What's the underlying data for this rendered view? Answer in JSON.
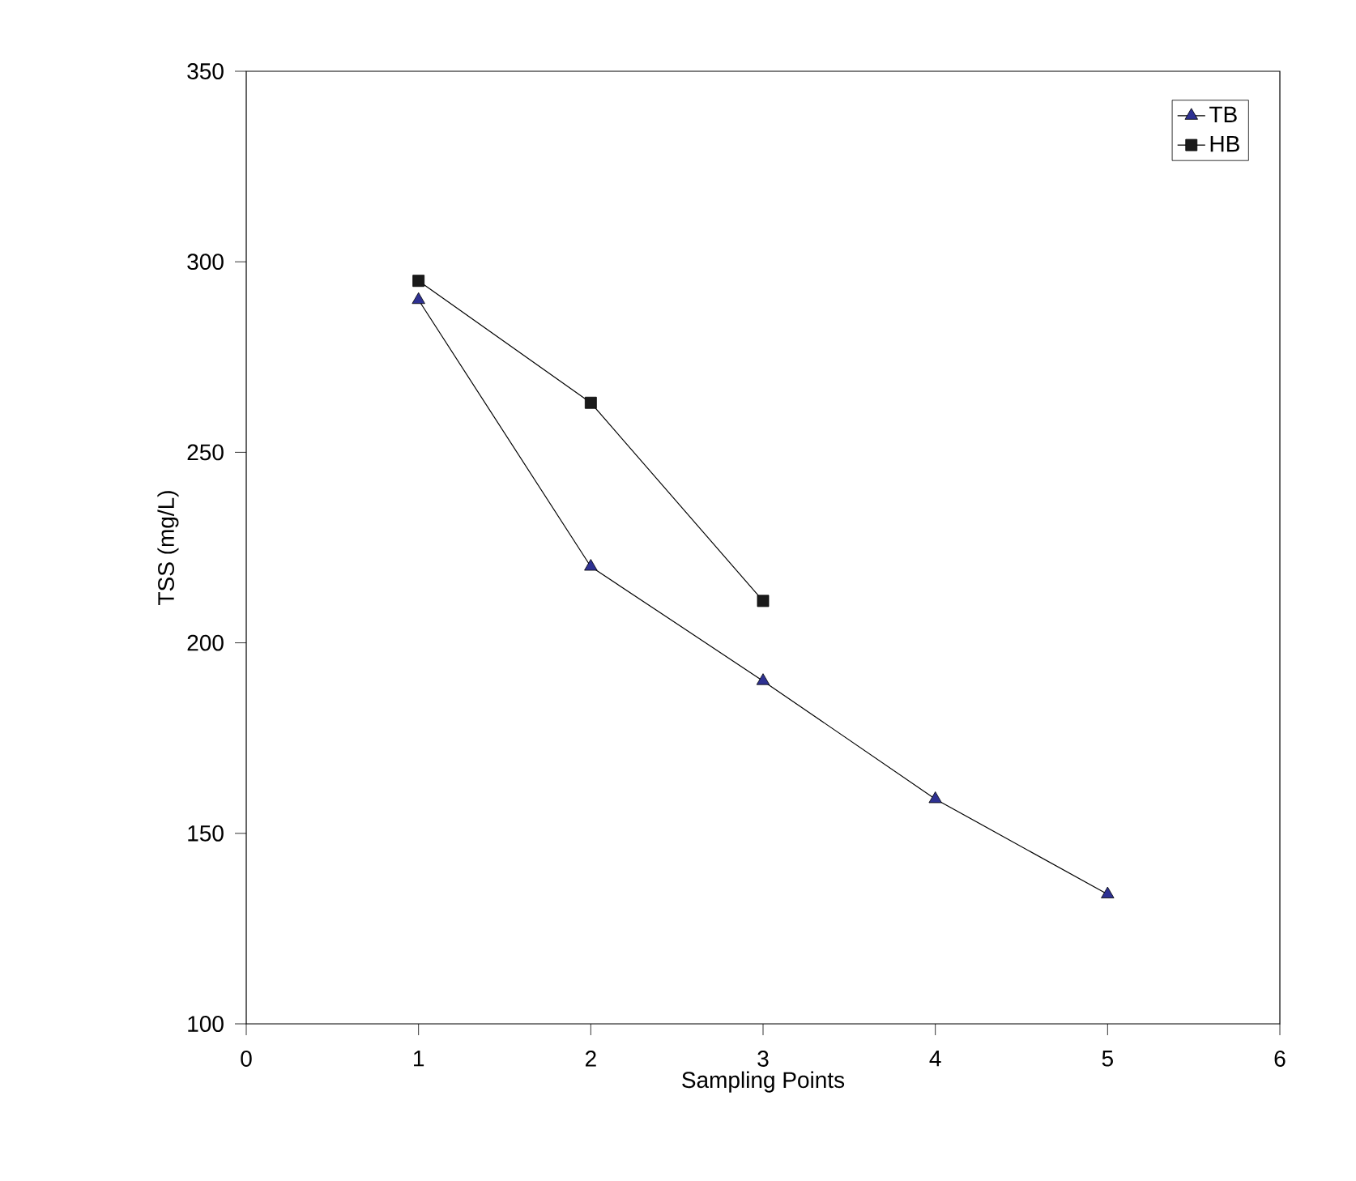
{
  "chart_data": {
    "type": "line",
    "xlabel": "Sampling Points",
    "ylabel": "TSS (mg/L)",
    "xlim": [
      0,
      6
    ],
    "xticks": [
      0,
      1,
      2,
      3,
      4,
      5,
      6
    ],
    "ylim": [
      100,
      350
    ],
    "yticks": [
      100,
      150,
      200,
      250,
      300,
      350
    ],
    "grid": false,
    "legend": "top right",
    "line_style": "solid",
    "series": [
      {
        "name": "TB",
        "color": "#2e3192",
        "marker": "triangle",
        "x": [
          1,
          2,
          3,
          4,
          5
        ],
        "values": [
          290,
          220,
          190,
          159,
          134
        ]
      },
      {
        "name": "HB",
        "color": "#1a1a1a",
        "marker": "square",
        "x": [
          1,
          2,
          3
        ],
        "values": [
          295,
          263,
          211
        ]
      }
    ]
  }
}
